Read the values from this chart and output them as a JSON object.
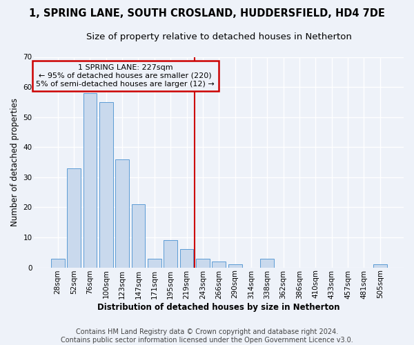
{
  "title": "1, SPRING LANE, SOUTH CROSLAND, HUDDERSFIELD, HD4 7DE",
  "subtitle": "Size of property relative to detached houses in Netherton",
  "xlabel": "Distribution of detached houses by size in Netherton",
  "ylabel": "Number of detached properties",
  "footer_line1": "Contains HM Land Registry data © Crown copyright and database right 2024.",
  "footer_line2": "Contains public sector information licensed under the Open Government Licence v3.0.",
  "bar_labels": [
    "28sqm",
    "52sqm",
    "76sqm",
    "100sqm",
    "123sqm",
    "147sqm",
    "171sqm",
    "195sqm",
    "219sqm",
    "243sqm",
    "266sqm",
    "290sqm",
    "314sqm",
    "338sqm",
    "362sqm",
    "386sqm",
    "410sqm",
    "433sqm",
    "457sqm",
    "481sqm",
    "505sqm"
  ],
  "bar_values": [
    3,
    33,
    58,
    55,
    36,
    21,
    3,
    9,
    6,
    3,
    2,
    1,
    0,
    3,
    0,
    0,
    0,
    0,
    0,
    0,
    1
  ],
  "bar_color": "#c9d9ed",
  "bar_edge_color": "#5b9bd5",
  "annotation_text_line1": "1 SPRING LANE: 227sqm",
  "annotation_text_line2": "← 95% of detached houses are smaller (220)",
  "annotation_text_line3": "5% of semi-detached houses are larger (12) →",
  "annotation_box_color": "#cc0000",
  "vline_color": "#cc0000",
  "vline_x": 8.5,
  "ylim": [
    0,
    70
  ],
  "yticks": [
    0,
    10,
    20,
    30,
    40,
    50,
    60,
    70
  ],
  "background_color": "#eef2f9",
  "grid_color": "#ffffff",
  "title_fontsize": 10.5,
  "subtitle_fontsize": 9.5,
  "xlabel_fontsize": 8.5,
  "ylabel_fontsize": 8.5,
  "tick_fontsize": 7.5,
  "footer_fontsize": 7.0,
  "annotation_fontsize": 8.0
}
